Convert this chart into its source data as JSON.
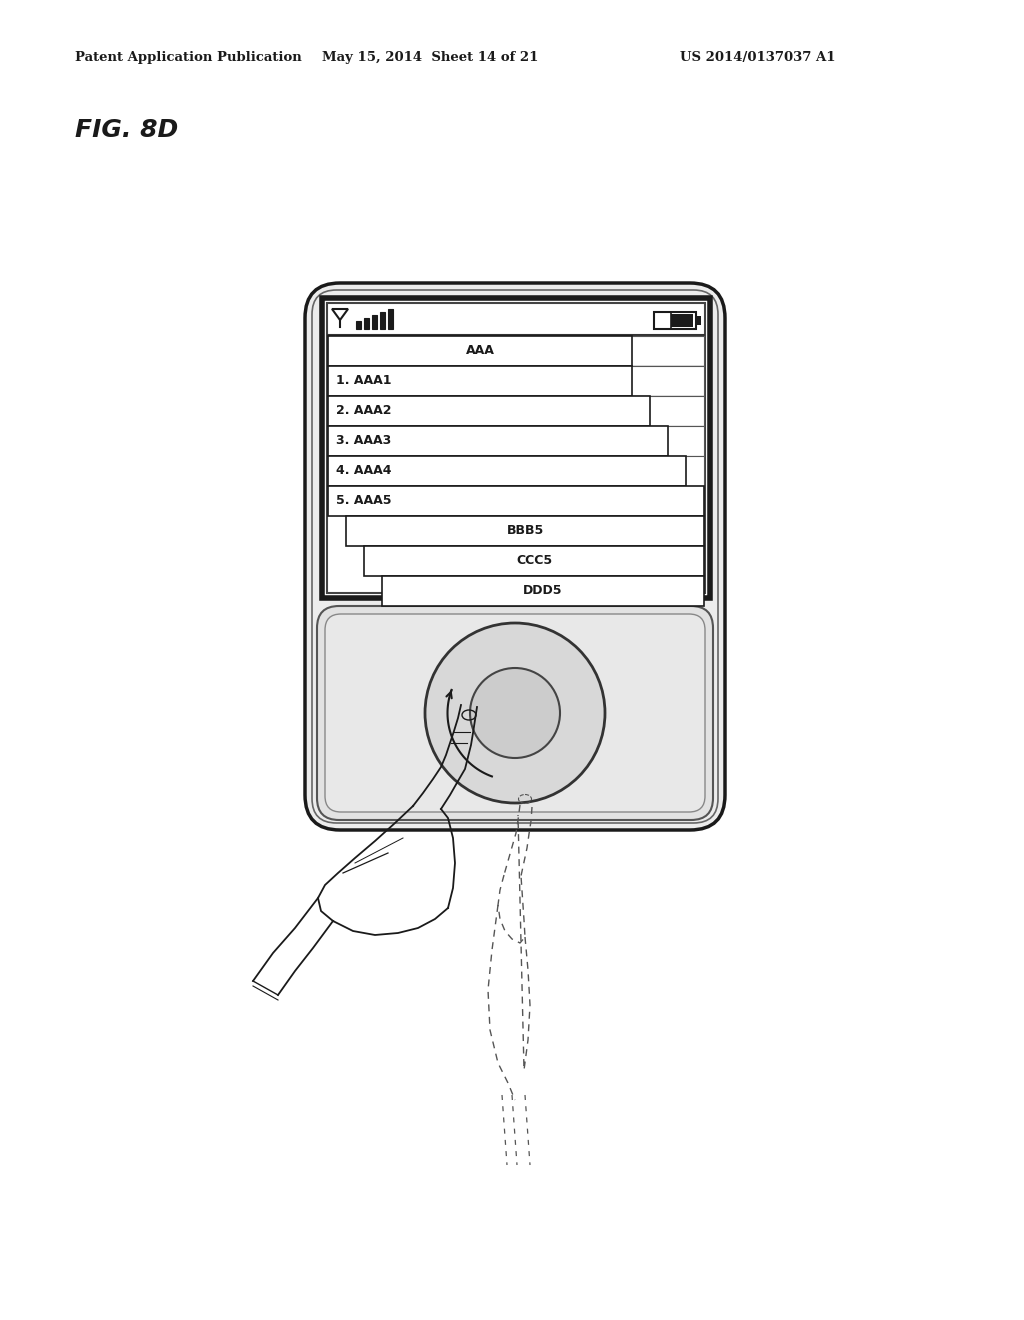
{
  "header_left": "Patent Application Publication",
  "header_mid": "May 15, 2014  Sheet 14 of 21",
  "header_right": "US 2014/0137037 A1",
  "fig_label": "FIG. 8D",
  "bg_color": "#ffffff",
  "menu_items": [
    {
      "label": "AAA",
      "indent": 0,
      "center": true
    },
    {
      "label": "1. AAA1",
      "indent": 0,
      "center": false
    },
    {
      "label": "2. AAA2",
      "indent": 0,
      "center": false
    },
    {
      "label": "3. AAA3",
      "indent": 0,
      "center": false
    },
    {
      "label": "4. AAA4",
      "indent": 0,
      "center": false
    },
    {
      "label": "5. AAA5",
      "indent": 0,
      "center": false
    },
    {
      "label": "BBB5",
      "indent": 1,
      "center": true
    },
    {
      "label": "CCC5",
      "indent": 2,
      "center": true
    },
    {
      "label": "DDD5",
      "indent": 3,
      "center": true
    }
  ]
}
